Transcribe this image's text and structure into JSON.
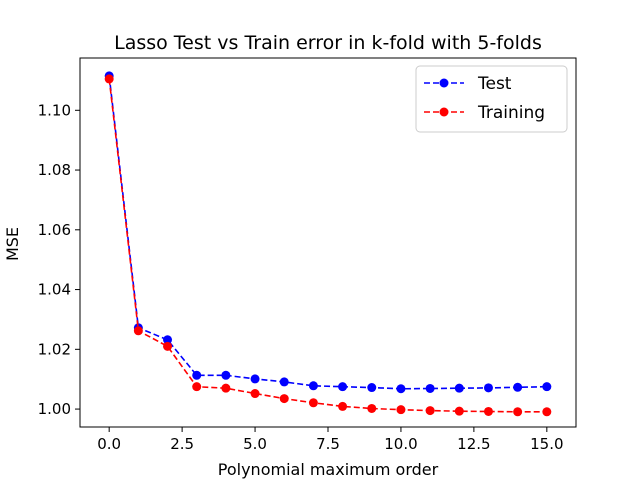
{
  "chart_data": {
    "type": "line",
    "title": "Lasso Test vs Train error in k-fold with 5-folds",
    "xlabel": "Polynomial maximum order",
    "ylabel": "MSE",
    "xlim": [
      -1.0,
      16.0
    ],
    "ylim": [
      0.994,
      1.1175
    ],
    "xticks": [
      0,
      2.5,
      5,
      7.5,
      10,
      12.5,
      15
    ],
    "xtick_labels": [
      "0.0",
      "2.5",
      "5.0",
      "7.5",
      "10.0",
      "12.5",
      "15.0"
    ],
    "yticks": [
      1.0,
      1.02,
      1.04,
      1.06,
      1.08,
      1.1
    ],
    "ytick_labels": [
      "1.00",
      "1.02",
      "1.04",
      "1.06",
      "1.08",
      "1.10"
    ],
    "grid": false,
    "legend_position": "top-right",
    "x": [
      0,
      1,
      2,
      3,
      4,
      5,
      6,
      7,
      8,
      9,
      10,
      11,
      12,
      13,
      14,
      15
    ],
    "series": [
      {
        "name": "Test",
        "color": "#0000ff",
        "style": "dashed line with circle markers",
        "values": [
          1.1115,
          1.0272,
          1.0232,
          1.0113,
          1.0113,
          1.0101,
          1.0091,
          1.0078,
          1.0075,
          1.0072,
          1.0068,
          1.0069,
          1.007,
          1.0071,
          1.0073,
          1.0075
        ]
      },
      {
        "name": "Training",
        "color": "#ff0000",
        "style": "dashed line with circle markers",
        "values": [
          1.1105,
          1.0262,
          1.021,
          1.0075,
          1.007,
          1.0052,
          1.0035,
          1.0021,
          1.0009,
          1.0002,
          0.9998,
          0.9995,
          0.9993,
          0.9992,
          0.9991,
          0.9991
        ]
      }
    ]
  }
}
